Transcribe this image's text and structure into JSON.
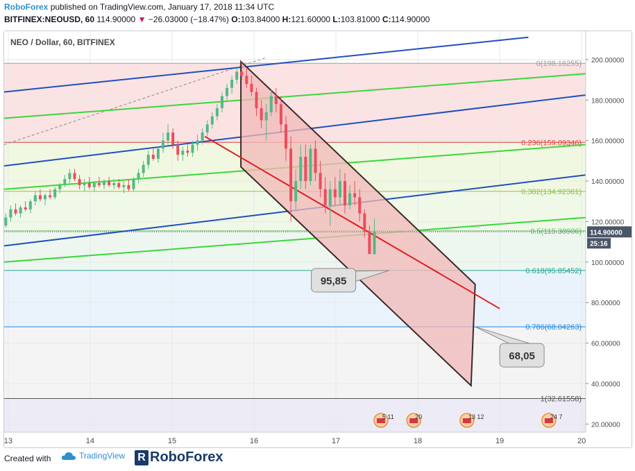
{
  "header": {
    "brand": "RoboForex",
    "published": "published on TradingView.com, January 17, 2018 11:34 UTC",
    "symbol": "BITFINEX:NEOUSD, 60",
    "price": "114.90000",
    "change": "−26.03000 (−18.47%)",
    "ohlc": {
      "o_label": "O:",
      "o": "103.84000",
      "h_label": "H:",
      "h": "121.60000",
      "l_label": "L:",
      "l": "103.81000",
      "c_label": "C:",
      "c": "114.90000"
    }
  },
  "legend_title": "NEO / Dollar, 60, BITFINEX",
  "footer": {
    "created_with": "Created with",
    "tradingview": "TradingView",
    "roboforex": "RoboForex"
  },
  "colors": {
    "candle_up": "#53b987",
    "candle_down": "#eb4d5c",
    "channel_fill": "#f2b8b8",
    "channel_border": "#3b2a2a",
    "blue_channel": "#1f4fbf",
    "green_channel": "#3bd63b",
    "red_line": "#e01f1f",
    "price_badge": "#4a5568"
  },
  "chart_data": {
    "type": "candlestick",
    "symbol": "NEOUSD",
    "timeframe": "60",
    "ylim": [
      16,
      214
    ],
    "y_ticks": [
      20,
      40,
      60,
      80,
      100,
      120,
      140,
      160,
      180,
      200
    ],
    "y_tick_labels": [
      "20.00000",
      "40.00000",
      "60.00000",
      "80.00000",
      "100.00000",
      "120.00000",
      "140.00000",
      "160.00000",
      "180.00000",
      "200.00000"
    ],
    "x_ticks": [
      13,
      14,
      15,
      16,
      17,
      18,
      19,
      20
    ],
    "x_tick_labels": [
      "13",
      "14",
      "15",
      "16",
      "17",
      "18",
      "19",
      "20"
    ],
    "xlim": [
      12.95,
      20.05
    ],
    "current_price": 114.9,
    "current_price_label": "114.90000",
    "countdown_label": "25:16",
    "fibonacci": [
      {
        "level": "0",
        "price": 198.16255,
        "label": "0(198.16255)",
        "color": "#9e9e9e",
        "zone_color": "#fbe3e3"
      },
      {
        "level": "0.236",
        "price": 159.09346,
        "label": "0.236(159.09346)",
        "color": "#e23b3b",
        "zone_color": "#f1f8e1"
      },
      {
        "level": "0.382",
        "price": 134.92361,
        "label": "0.382(134.92361)",
        "color": "#8bc34a",
        "zone_color": "#f0f8e8"
      },
      {
        "level": "0.5",
        "price": 115.38906,
        "label": "0.5(115.38906)",
        "color": "#66bb6a",
        "zone_color": "#eef7ef"
      },
      {
        "level": "0.618",
        "price": 95.85452,
        "label": "0.618(95.85452)",
        "color": "#26a69a",
        "zone_color": "#eaf3fb"
      },
      {
        "level": "0.786",
        "price": 68.04263,
        "label": "0.786(68.04263)",
        "color": "#1e88e5",
        "zone_color": "#f4f4f4"
      },
      {
        "level": "1",
        "price": 32.61558,
        "label": "1(32.61558)",
        "color": "#555555",
        "zone_color": "#ecebf6"
      }
    ],
    "annotations": [
      {
        "label": "95,85",
        "x": 16.7,
        "y": 91,
        "pointer_x": 17.65,
        "pointer_y": 95.85
      },
      {
        "label": "68,05",
        "x": 19.0,
        "y": 54,
        "pointer_x": 18.7,
        "pointer_y": 68.05
      }
    ],
    "channel": {
      "upper": [
        [
          15.84,
          199
        ],
        [
          18.7,
          89
        ]
      ],
      "lower": [
        [
          15.84,
          147
        ],
        [
          18.65,
          39
        ]
      ]
    },
    "blue_lines": [
      [
        [
          12.95,
          184
        ],
        [
          19.35,
          211
        ]
      ],
      [
        [
          12.95,
          147.5
        ],
        [
          20.05,
          182.5
        ]
      ],
      [
        [
          12.95,
          108
        ],
        [
          20.05,
          143
        ]
      ]
    ],
    "green_lines": [
      [
        [
          12.95,
          171
        ],
        [
          20.05,
          193
        ]
      ],
      [
        [
          12.95,
          136
        ],
        [
          20.05,
          158
        ]
      ],
      [
        [
          12.95,
          100
        ],
        [
          20.05,
          122
        ]
      ]
    ],
    "red_trendline": [
      [
        15.4,
        162
      ],
      [
        19.0,
        77
      ]
    ],
    "dashed_trendline": [
      [
        12.95,
        158
      ],
      [
        16.15,
        201
      ]
    ],
    "event_icons": [
      {
        "x": 17.55,
        "label": "5 11"
      },
      {
        "x": 17.95,
        "label": "20"
      },
      {
        "x": 18.6,
        "label": "13 12"
      },
      {
        "x": 19.6,
        "label": "24 7"
      }
    ],
    "candles": [
      [
        12.97,
        118,
        124,
        117,
        122
      ],
      [
        13.03,
        122,
        128,
        120,
        126
      ],
      [
        13.09,
        126,
        129,
        123,
        124
      ],
      [
        13.15,
        124,
        128,
        122,
        127
      ],
      [
        13.21,
        127,
        130,
        125,
        126
      ],
      [
        13.27,
        126,
        131,
        124,
        130
      ],
      [
        13.33,
        130,
        135,
        128,
        133
      ],
      [
        13.39,
        133,
        136,
        130,
        131
      ],
      [
        13.45,
        131,
        134,
        128,
        133
      ],
      [
        13.51,
        133,
        136,
        131,
        132
      ],
      [
        13.57,
        132,
        137,
        131,
        136
      ],
      [
        13.63,
        136,
        139,
        134,
        138
      ],
      [
        13.69,
        138,
        143,
        137,
        141
      ],
      [
        13.75,
        141,
        146,
        139,
        144
      ],
      [
        13.81,
        144,
        146,
        140,
        141
      ],
      [
        13.87,
        141,
        143,
        136,
        138
      ],
      [
        13.93,
        138,
        141,
        135,
        139
      ],
      [
        13.99,
        139,
        142,
        136,
        137
      ],
      [
        14.05,
        137,
        140,
        135,
        139
      ],
      [
        14.11,
        139,
        142,
        137,
        138
      ],
      [
        14.17,
        138,
        141,
        136,
        140
      ],
      [
        14.23,
        140,
        142,
        137,
        138
      ],
      [
        14.29,
        138,
        141,
        136,
        139
      ],
      [
        14.35,
        139,
        141,
        136,
        137
      ],
      [
        14.41,
        137,
        140,
        134,
        138
      ],
      [
        14.47,
        138,
        141,
        135,
        136
      ],
      [
        14.53,
        136,
        142,
        135,
        141
      ],
      [
        14.59,
        141,
        146,
        139,
        144
      ],
      [
        14.65,
        144,
        150,
        142,
        148
      ],
      [
        14.71,
        148,
        155,
        146,
        153
      ],
      [
        14.77,
        153,
        156,
        150,
        151
      ],
      [
        14.83,
        151,
        157,
        149,
        156
      ],
      [
        14.89,
        156,
        164,
        154,
        160
      ],
      [
        14.95,
        160,
        168,
        158,
        164
      ],
      [
        15.01,
        164,
        166,
        156,
        158
      ],
      [
        15.07,
        158,
        160,
        150,
        153
      ],
      [
        15.13,
        153,
        157,
        150,
        155
      ],
      [
        15.19,
        155,
        158,
        152,
        154
      ],
      [
        15.25,
        154,
        160,
        152,
        158
      ],
      [
        15.31,
        158,
        163,
        155,
        160
      ],
      [
        15.37,
        160,
        166,
        158,
        164
      ],
      [
        15.43,
        164,
        170,
        162,
        168
      ],
      [
        15.49,
        168,
        174,
        166,
        172
      ],
      [
        15.55,
        172,
        178,
        170,
        176
      ],
      [
        15.61,
        176,
        184,
        174,
        182
      ],
      [
        15.67,
        182,
        188,
        180,
        186
      ],
      [
        15.73,
        186,
        192,
        183,
        190
      ],
      [
        15.79,
        190,
        196,
        188,
        194
      ],
      [
        15.85,
        194,
        199,
        190,
        192
      ],
      [
        15.91,
        192,
        196,
        186,
        188
      ],
      [
        15.97,
        188,
        192,
        182,
        184
      ],
      [
        16.03,
        184,
        186,
        172,
        176
      ],
      [
        16.09,
        176,
        180,
        166,
        170
      ],
      [
        16.15,
        170,
        178,
        160,
        174
      ],
      [
        16.21,
        174,
        185,
        172,
        182
      ],
      [
        16.27,
        182,
        186,
        174,
        178
      ],
      [
        16.33,
        178,
        182,
        164,
        168
      ],
      [
        16.39,
        168,
        172,
        150,
        156
      ],
      [
        16.45,
        156,
        162,
        120,
        130
      ],
      [
        16.51,
        130,
        146,
        126,
        140
      ],
      [
        16.57,
        140,
        158,
        136,
        152
      ],
      [
        16.63,
        152,
        158,
        136,
        140
      ],
      [
        16.69,
        140,
        158,
        138,
        156
      ],
      [
        16.75,
        156,
        160,
        140,
        144
      ],
      [
        16.81,
        144,
        150,
        132,
        136
      ],
      [
        16.87,
        136,
        142,
        124,
        128
      ],
      [
        16.93,
        128,
        140,
        118,
        136
      ],
      [
        16.99,
        136,
        142,
        128,
        132
      ],
      [
        17.05,
        132,
        146,
        128,
        140
      ],
      [
        17.11,
        140,
        144,
        124,
        128
      ],
      [
        17.17,
        128,
        138,
        126,
        134
      ],
      [
        17.23,
        134,
        140,
        128,
        132
      ],
      [
        17.29,
        132,
        136,
        120,
        124
      ],
      [
        17.35,
        124,
        126,
        112,
        115
      ],
      [
        17.41,
        115,
        118,
        103.81,
        104
      ],
      [
        17.47,
        103.84,
        121.6,
        103.81,
        114.9
      ]
    ]
  }
}
